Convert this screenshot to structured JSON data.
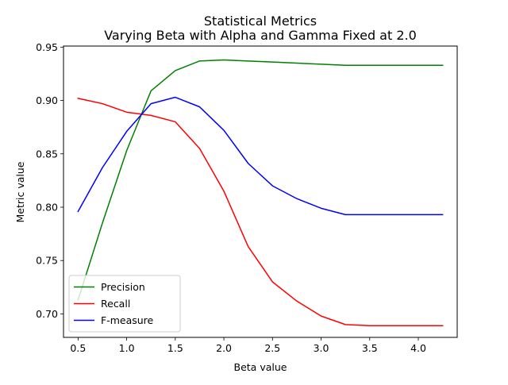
{
  "chart_data": {
    "type": "line",
    "title": "Statistical Metrics",
    "subtitle": "Varying Beta with Alpha and Gamma Fixed at 2.0",
    "xlabel": "Beta value",
    "ylabel": "Metric value",
    "x": [
      0.5,
      0.75,
      1.0,
      1.25,
      1.5,
      1.75,
      2.0,
      2.25,
      2.5,
      2.75,
      3.0,
      3.25,
      3.5,
      3.75,
      4.0,
      4.25
    ],
    "xlim": [
      0.35,
      4.4
    ],
    "ylim": [
      0.678,
      0.951
    ],
    "xticks": [
      0.5,
      1.0,
      1.5,
      2.0,
      2.5,
      3.0,
      3.5,
      4.0
    ],
    "xtick_labels": [
      "0.5",
      "1.0",
      "1.5",
      "2.0",
      "2.5",
      "3.0",
      "3.5",
      "4.0"
    ],
    "yticks": [
      0.7,
      0.75,
      0.8,
      0.85,
      0.9,
      0.95
    ],
    "ytick_labels": [
      "0.70",
      "0.75",
      "0.80",
      "0.85",
      "0.90",
      "0.95"
    ],
    "grid": false,
    "legend_position": "lower-left",
    "series": [
      {
        "name": "Precision",
        "color": "#008000",
        "values": [
          0.713,
          0.785,
          0.853,
          0.909,
          0.928,
          0.937,
          0.938,
          0.937,
          0.936,
          0.935,
          0.934,
          0.933,
          0.933,
          0.933,
          0.933,
          0.933
        ]
      },
      {
        "name": "Recall",
        "color": "#ff0000",
        "values": [
          0.902,
          0.897,
          0.889,
          0.886,
          0.88,
          0.855,
          0.815,
          0.763,
          0.73,
          0.712,
          0.698,
          0.69,
          0.689,
          0.689,
          0.689,
          0.689
        ]
      },
      {
        "name": "F-measure",
        "color": "#0000ff",
        "values": [
          0.796,
          0.837,
          0.871,
          0.897,
          0.903,
          0.894,
          0.872,
          0.841,
          0.82,
          0.808,
          0.799,
          0.793,
          0.793,
          0.793,
          0.793,
          0.793
        ]
      }
    ]
  }
}
